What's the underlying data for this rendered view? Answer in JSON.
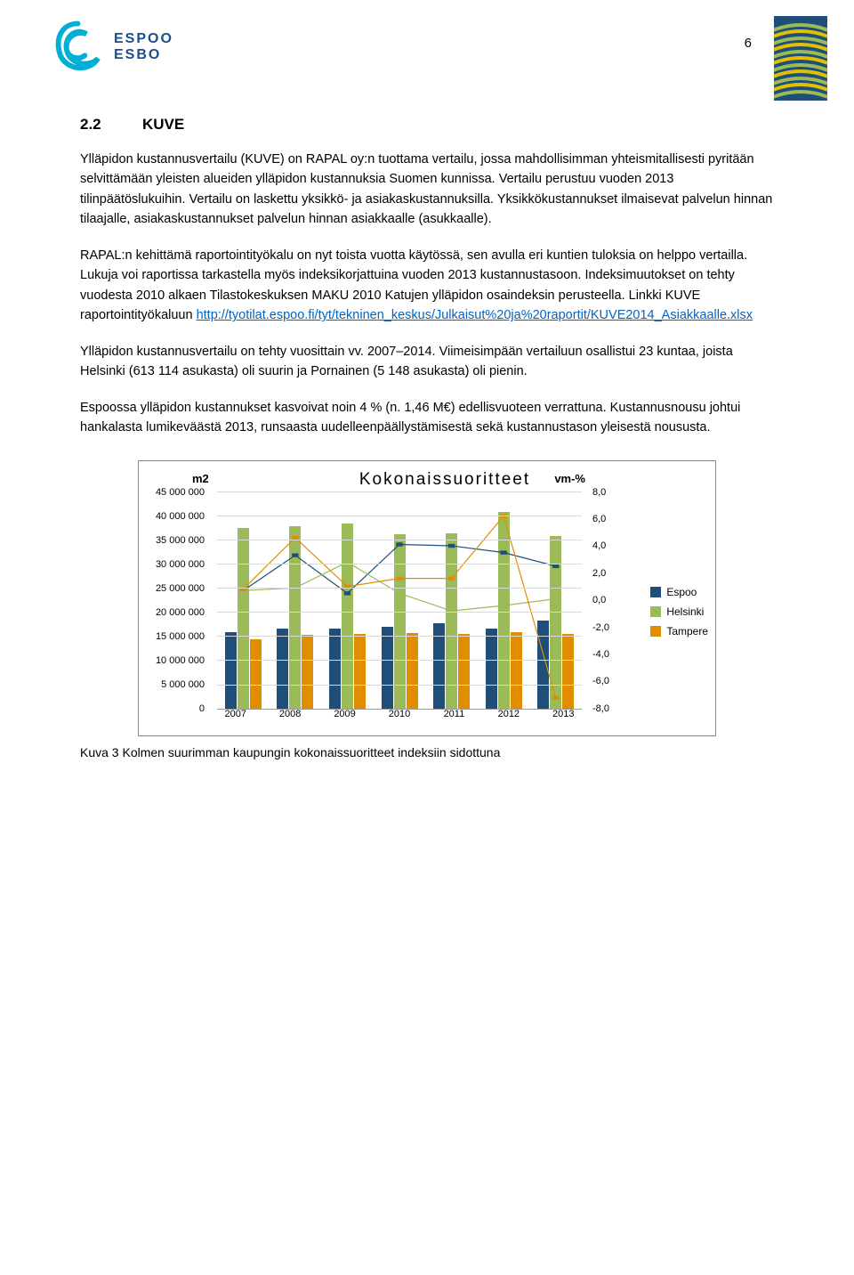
{
  "page_number": "6",
  "logo": {
    "top": "ESPOO",
    "bottom": "ESBO",
    "color": "#1a4f8b",
    "swirl_color": "#00aed6"
  },
  "heading": {
    "num": "2.2",
    "title": "KUVE"
  },
  "paragraphs": [
    "Ylläpidon kustannusvertailu (KUVE) on RAPAL oy:n tuottama vertailu, jossa mahdollisimman yhteismitallisesti pyritään selvittämään yleisten alueiden ylläpidon kustannuksia Suomen kunnissa. Vertailu perustuu vuoden 2013 tilinpäätöslukuihin. Vertailu on laskettu yksikkö- ja asiakaskustannuksilla. Yksikkökustannukset ilmaisevat palvelun hinnan tilaajalle, asiakaskustannukset palvelun hinnan asiakkaalle (asukkaalle).",
    "RAPAL:n kehittämä raportointityökalu on nyt toista vuotta käytössä, sen avulla eri kuntien tuloksia on helppo vertailla. Lukuja voi raportissa tarkastella myös indeksikorjattuina vuoden 2013 kustannustasoon. Indeksimuutokset on tehty vuodesta 2010 alkaen Tilastokeskuksen MAKU 2010 Katujen ylläpidon osaindeksin perusteella. Linkki KUVE raportointityökaluun ",
    "Ylläpidon kustannusvertailu on tehty vuosittain vv. 2007–2014. Viimeisimpään vertailuun osallistui 23 kuntaa, joista Helsinki (613 114 asukasta) oli suurin ja Pornainen (5 148 asukasta) oli pienin.",
    "Espoossa ylläpidon kustannukset kasvoivat noin 4 % (n. 1,46 M€) edellisvuoteen verrattuna. Kustannusnousu johtui hankalasta lumikeväästä 2013, runsaasta uudelleenpäällystämisestä sekä kustannustason yleisestä noususta."
  ],
  "link": {
    "text": "http://tyotilat.espoo.fi/tyt/tekninen_keskus/Julkaisut%20ja%20raportit/KUVE2014_Asiakkaalle.xlsx"
  },
  "chart": {
    "title": "Kokonaissuoritteet",
    "left_axis_title": "m2",
    "right_axis_title": "vm-%",
    "colors": {
      "espoo": "#1f4e79",
      "helsinki": "#9bbb59",
      "tampere": "#e08e00",
      "grid": "#d9d9d9",
      "bg": "#ffffff"
    },
    "y_left": {
      "min": 0,
      "max": 45000000,
      "step": 5000000,
      "labels": [
        "0",
        "5 000 000",
        "10 000 000",
        "15 000 000",
        "20 000 000",
        "25 000 000",
        "30 000 000",
        "35 000 000",
        "40 000 000",
        "45 000 000"
      ]
    },
    "y_right": {
      "min": -8,
      "max": 8,
      "step": 2,
      "labels": [
        "-8,0",
        "-6,0",
        "-4,0",
        "-2,0",
        "0,0",
        "2,0",
        "4,0",
        "6,0",
        "8,0"
      ]
    },
    "categories": [
      "2007",
      "2008",
      "2009",
      "2010",
      "2011",
      "2012",
      "2013"
    ],
    "bars": {
      "espoo": [
        15800000,
        16500000,
        16500000,
        16800000,
        17500000,
        16500000,
        18200000
      ],
      "helsinki": [
        37200000,
        37500000,
        38200000,
        36000000,
        36200000,
        40500000,
        35500000
      ],
      "tampere": [
        14200000,
        15200000,
        15300000,
        15500000,
        15300000,
        15800000,
        15300000
      ]
    },
    "lines_vm": {
      "espoo": [
        0.7,
        3.3,
        0.5,
        4.1,
        4.0,
        3.5,
        2.5
      ],
      "helsinki": [
        0.7,
        0.9,
        2.8,
        0.5,
        -0.8,
        -0.4,
        0.1
      ],
      "tampere": [
        0.8,
        4.6,
        1.0,
        1.6,
        1.6,
        6.2,
        -7.2
      ]
    },
    "legend": [
      {
        "label": "Espoo",
        "color": "#1f4e79"
      },
      {
        "label": "Helsinki",
        "color": "#9bbb59"
      },
      {
        "label": "Tampere",
        "color": "#e08e00"
      }
    ]
  },
  "caption": "Kuva 3 Kolmen suurimman kaupungin kokonaissuoritteet indeksiin sidottuna"
}
